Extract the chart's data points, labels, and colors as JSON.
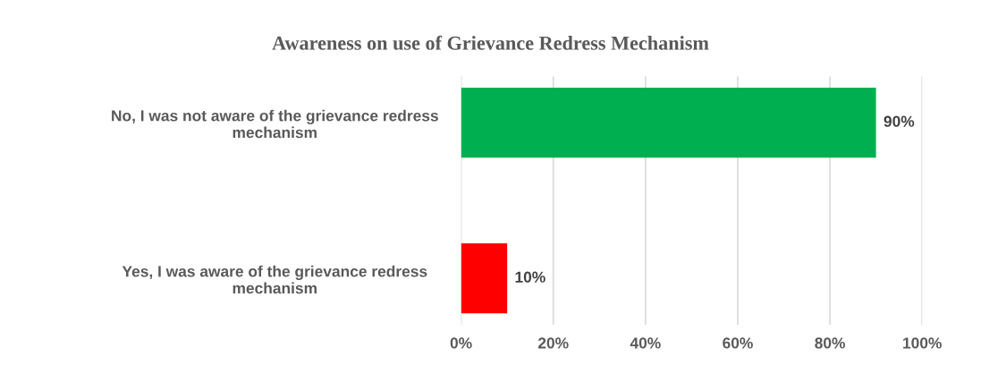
{
  "chart_data": {
    "type": "bar",
    "orientation": "horizontal",
    "title": "Awareness on use of Grievance Redress Mechanism",
    "categories": [
      "No, I was not aware of the grievance redress mechanism",
      "Yes, I was aware of the grievance redress mechanism"
    ],
    "values": [
      90,
      10
    ],
    "colors": [
      "#00b050",
      "#ff0000"
    ],
    "value_labels": [
      "90%",
      "10%"
    ],
    "xlim": [
      0,
      100
    ],
    "xticks": [
      {
        "value": 0,
        "label": "0%"
      },
      {
        "value": 20,
        "label": "20%"
      },
      {
        "value": 40,
        "label": "40%"
      },
      {
        "value": 60,
        "label": "60%"
      },
      {
        "value": 80,
        "label": "80%"
      },
      {
        "value": 100,
        "label": "100%"
      }
    ],
    "grid": "x",
    "legend": false
  }
}
